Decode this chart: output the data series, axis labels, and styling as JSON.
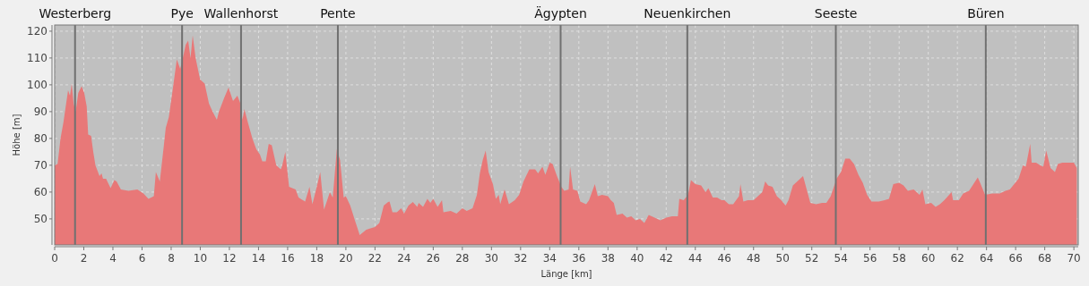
{
  "chart_data": {
    "type": "area",
    "xlabel": "Länge [km]",
    "ylabel": "Höhe [m]",
    "color": "#e87878",
    "x": [
      0,
      0.2,
      0.4,
      0.6,
      0.92,
      1.05,
      1.17,
      1.3,
      1.44,
      1.62,
      1.85,
      2.03,
      2.2,
      2.3,
      2.5,
      2.65,
      2.8,
      3.08,
      3.22,
      3.32,
      3.53,
      3.84,
      4.1,
      4.25,
      4.55,
      5.07,
      5.68,
      6.1,
      6.44,
      6.81,
      6.95,
      7.22,
      7.49,
      7.63,
      7.84,
      8.1,
      8.39,
      8.62,
      8.8,
      9.0,
      9.17,
      9.33,
      9.48,
      9.68,
      9.99,
      10.3,
      10.6,
      10.85,
      11.14,
      11.28,
      11.63,
      11.94,
      12.25,
      12.55,
      12.76,
      12.9,
      13.03,
      13.27,
      13.58,
      13.85,
      14.1,
      14.26,
      14.5,
      14.7,
      14.91,
      15.22,
      15.53,
      15.63,
      15.84,
      16.1,
      16.55,
      16.75,
      17.2,
      17.5,
      17.7,
      18.0,
      18.24,
      18.5,
      18.9,
      19.1,
      19.38,
      19.6,
      19.85,
      20.0,
      20.3,
      20.65,
      20.95,
      21.4,
      22.0,
      22.3,
      22.6,
      22.9,
      23.0,
      23.2,
      23.5,
      23.8,
      24.0,
      24.3,
      24.6,
      24.9,
      25.0,
      25.3,
      25.6,
      25.8,
      26.0,
      26.3,
      26.6,
      26.7,
      27.2,
      27.6,
      28.0,
      28.3,
      28.7,
      29.0,
      29.2,
      29.4,
      29.6,
      29.8,
      30.1,
      30.3,
      30.5,
      30.6,
      30.9,
      31.2,
      31.6,
      31.9,
      32.2,
      32.6,
      33.0,
      33.2,
      33.5,
      33.7,
      34.0,
      34.2,
      34.5,
      34.8,
      35.0,
      35.3,
      35.4,
      35.6,
      35.9,
      36.1,
      36.5,
      36.7,
      37.1,
      37.3,
      37.6,
      38.0,
      38.2,
      38.4,
      38.6,
      39.0,
      39.3,
      39.6,
      39.9,
      40.2,
      40.5,
      40.8,
      41.0,
      41.2,
      41.6,
      42.0,
      42.4,
      42.8,
      42.9,
      43.2,
      43.5,
      43.7,
      44.0,
      44.4,
      44.7,
      44.9,
      45.2,
      45.5,
      45.8,
      46.0,
      46.3,
      46.6,
      46.8,
      47.0,
      47.1,
      47.3,
      47.6,
      48.0,
      48.3,
      48.6,
      48.8,
      49.0,
      49.3,
      49.6,
      49.9,
      50.2,
      50.4,
      50.7,
      51.1,
      51.4,
      51.6,
      51.9,
      52.3,
      52.7,
      53.0,
      53.3,
      53.7,
      54.0,
      54.3,
      54.6,
      54.9,
      55.2,
      55.5,
      55.8,
      56.1,
      56.6,
      57.0,
      57.3,
      57.6,
      58.0,
      58.3,
      58.6,
      59.0,
      59.4,
      59.6,
      59.8,
      60.2,
      60.5,
      60.8,
      61.1,
      61.6,
      61.7,
      62.1,
      62.4,
      62.8,
      63.1,
      63.4,
      63.6,
      63.9,
      64.4,
      64.9,
      65.3,
      65.6,
      65.9,
      66.2,
      66.5,
      66.7,
      67.0,
      67.1,
      67.4,
      67.7,
      67.9,
      68.1,
      68.4,
      68.7,
      68.9,
      69.2,
      69.6,
      70.0,
      70.2
    ],
    "values": [
      70,
      70.5,
      80,
      86,
      98,
      96,
      100.5,
      93,
      90,
      97,
      99.5,
      97,
      92,
      81.5,
      81,
      75,
      70,
      66,
      67,
      65,
      65,
      61.5,
      64.5,
      64,
      61,
      60.5,
      61,
      59.5,
      57.5,
      58.5,
      67.5,
      64,
      77,
      84,
      88,
      98,
      109.5,
      106,
      110,
      115,
      116.5,
      110,
      118.5,
      110,
      102,
      100.5,
      93,
      90,
      87,
      90,
      95,
      99,
      94,
      96,
      93,
      87,
      91,
      86,
      80,
      76,
      74,
      71.5,
      71.5,
      78,
      77.5,
      70,
      68.5,
      70,
      75,
      62,
      61,
      58,
      56.5,
      62,
      55.5,
      62,
      67.5,
      53.5,
      60,
      58,
      76,
      72,
      58,
      58.5,
      55,
      49,
      44,
      46,
      47,
      48.5,
      55,
      56.3,
      56.5,
      52.5,
      52.5,
      54,
      52,
      55,
      56.3,
      54.5,
      56,
      54.5,
      57.5,
      56,
      57.5,
      54.5,
      57,
      52.5,
      53,
      52,
      54,
      53,
      54,
      59,
      67,
      72,
      75.5,
      67.5,
      63,
      57.5,
      59,
      55.5,
      61,
      55.5,
      57,
      59,
      64,
      68.5,
      68.5,
      67,
      69.5,
      66.5,
      71,
      70.5,
      66,
      62,
      60.5,
      61,
      69.5,
      61,
      60.5,
      56.5,
      55.5,
      57,
      63,
      58.5,
      59,
      58.5,
      57,
      56,
      51.5,
      52,
      50.5,
      51,
      49.5,
      50,
      48.5,
      51.5,
      51,
      50.5,
      49.5,
      50.5,
      51,
      51,
      57.5,
      57,
      59,
      64.5,
      63,
      62.5,
      60,
      61.5,
      58,
      58,
      57,
      57,
      55.5,
      55.5,
      57,
      58.5,
      63,
      56.5,
      57,
      57,
      58.5,
      60,
      64,
      62.5,
      62,
      58.5,
      57,
      55,
      57,
      62.5,
      64.5,
      66,
      62,
      56,
      55.5,
      56,
      56,
      58.5,
      65,
      67.5,
      72.5,
      72.5,
      70.5,
      66.5,
      63.5,
      59,
      56.5,
      56.5,
      57,
      57.5,
      63,
      63.5,
      62.5,
      60.5,
      61,
      59,
      61,
      55.5,
      56,
      54.5,
      55.5,
      57,
      60,
      57,
      57,
      59.5,
      60.5,
      63,
      65.5,
      63,
      59,
      59.5,
      59.5,
      60.5,
      61,
      63,
      65,
      70,
      69.5,
      78,
      71,
      71,
      70,
      69.5,
      75.5,
      69,
      67.5,
      70.5,
      71,
      71,
      71,
      69
    ],
    "xlim": [
      0,
      70.3
    ],
    "ylim": [
      40.3,
      122.3
    ],
    "xticks": [
      0,
      2,
      4,
      6,
      8,
      10,
      12,
      14,
      16,
      18,
      20,
      22,
      24,
      26,
      28,
      30,
      32,
      34,
      36,
      38,
      40,
      42,
      44,
      46,
      48,
      50,
      52,
      54,
      56,
      58,
      60,
      62,
      64,
      66,
      68,
      70
    ],
    "yticks": [
      50,
      60,
      70,
      80,
      90,
      100,
      110,
      120
    ],
    "grid": true,
    "ref_lines": [
      {
        "axis": "x",
        "value": 1.4,
        "label": "Westerberg",
        "color": "#707070"
      },
      {
        "axis": "x",
        "value": 8.75,
        "label": "Pye",
        "color": "#707070"
      },
      {
        "axis": "x",
        "value": 12.8,
        "label": "Wallenhorst",
        "color": "#707070"
      },
      {
        "axis": "x",
        "value": 19.45,
        "label": "Pente",
        "color": "#707070"
      },
      {
        "axis": "x",
        "value": 34.75,
        "label": "Ägypten",
        "color": "#707070"
      },
      {
        "axis": "x",
        "value": 43.45,
        "label": "Neuenkirchen",
        "color": "#707070"
      },
      {
        "axis": "x",
        "value": 53.65,
        "label": "Seeste",
        "color": "#707070"
      },
      {
        "axis": "x",
        "value": 63.95,
        "label": "Büren",
        "color": "#707070"
      }
    ]
  }
}
